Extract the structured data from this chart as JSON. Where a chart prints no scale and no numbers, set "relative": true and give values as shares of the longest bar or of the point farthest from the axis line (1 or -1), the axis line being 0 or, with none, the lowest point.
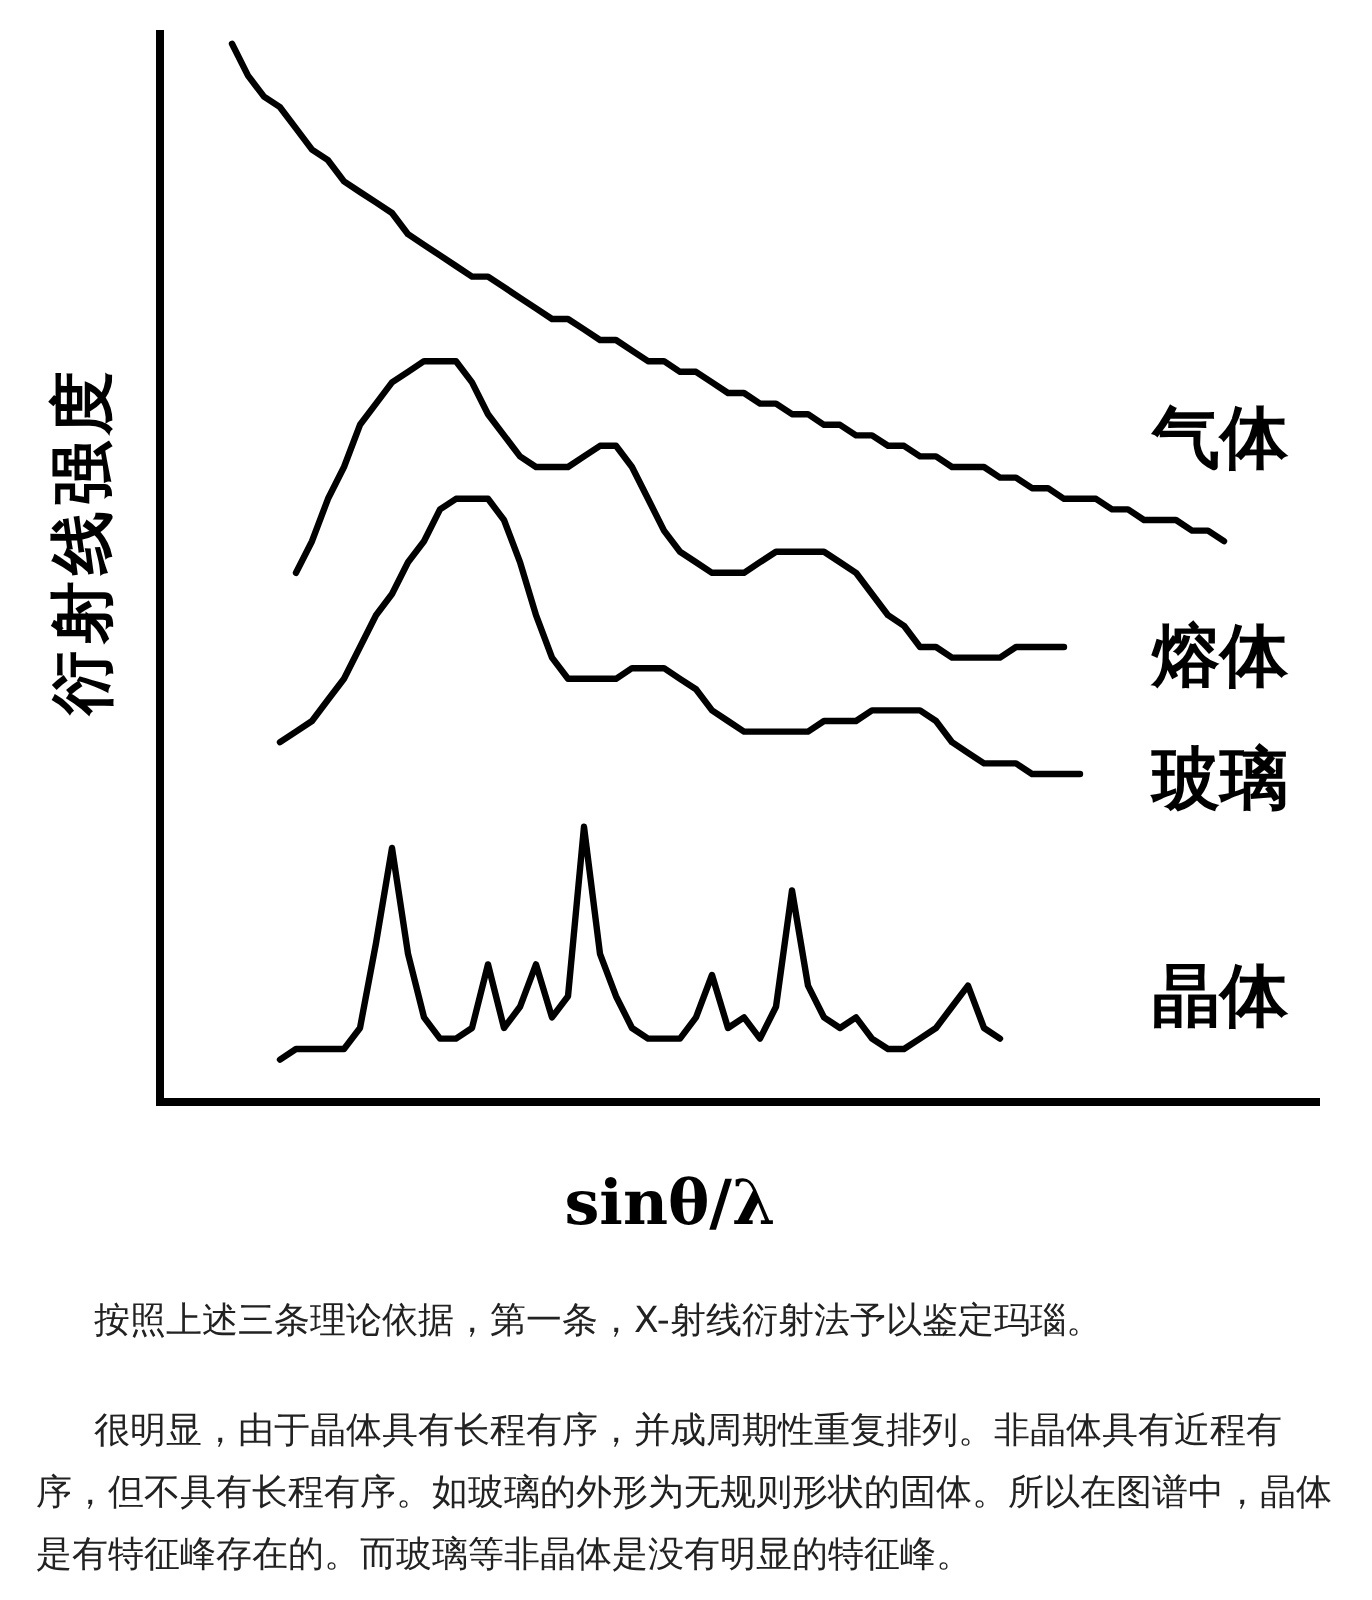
{
  "chart_data": {
    "type": "line",
    "relative": true,
    "xlabel": "sinθ/λ",
    "ylabel": "衍射线强度",
    "marker": "none",
    "line_style": "solid",
    "categories": [
      null,
      null,
      null,
      null,
      null,
      null,
      null,
      null,
      null,
      null,
      null,
      null,
      null,
      null,
      null,
      null,
      null,
      null,
      null,
      null,
      null,
      null,
      null,
      null,
      null,
      null,
      null,
      null,
      null,
      null,
      null,
      null,
      null,
      null,
      null,
      null,
      null,
      null,
      null,
      null,
      null,
      null,
      null,
      null,
      null,
      null,
      null,
      null,
      null,
      null,
      null,
      null,
      null,
      null,
      null,
      null,
      null,
      null,
      null,
      null,
      null,
      null,
      null,
      null,
      null,
      null,
      null
    ],
    "series": [
      {
        "name": "气体",
        "color": "#000000",
        "values": [
          null,
          null,
          null,
          null,
          1.0,
          0.97,
          0.95,
          0.94,
          0.92,
          0.9,
          0.89,
          0.87,
          0.86,
          0.85,
          0.84,
          0.82,
          0.81,
          0.8,
          0.79,
          0.78,
          0.78,
          0.77,
          0.76,
          0.75,
          0.74,
          0.74,
          0.73,
          0.72,
          0.72,
          0.71,
          0.7,
          0.7,
          0.69,
          0.69,
          0.68,
          0.67,
          0.67,
          0.66,
          0.66,
          0.65,
          0.65,
          0.64,
          0.64,
          0.63,
          0.63,
          0.62,
          0.62,
          0.61,
          0.61,
          0.6,
          0.6,
          0.6,
          0.59,
          0.59,
          0.58,
          0.58,
          0.57,
          0.57,
          0.57,
          0.56,
          0.56,
          0.55,
          0.55,
          0.55,
          0.54,
          0.54,
          0.53
        ]
      },
      {
        "name": "熔体",
        "color": "#000000",
        "values": [
          null,
          null,
          null,
          null,
          null,
          null,
          null,
          null,
          0.5,
          0.53,
          0.57,
          0.6,
          0.64,
          0.66,
          0.68,
          0.69,
          0.7,
          0.7,
          0.7,
          0.68,
          0.65,
          0.63,
          0.61,
          0.6,
          0.6,
          0.6,
          0.61,
          0.62,
          0.62,
          0.6,
          0.57,
          0.54,
          0.52,
          0.51,
          0.5,
          0.5,
          0.5,
          0.51,
          0.52,
          0.52,
          0.52,
          0.52,
          0.51,
          0.5,
          0.48,
          0.46,
          0.45,
          0.43,
          0.43,
          0.42,
          0.42,
          0.42,
          0.42,
          0.43,
          0.43,
          0.43,
          0.43,
          null,
          null,
          null,
          null,
          null,
          null,
          null,
          null,
          null,
          null
        ]
      },
      {
        "name": "玻璃",
        "color": "#000000",
        "values": [
          null,
          null,
          null,
          null,
          null,
          null,
          null,
          0.34,
          0.35,
          0.36,
          0.38,
          0.4,
          0.43,
          0.46,
          0.48,
          0.51,
          0.53,
          0.56,
          0.57,
          0.57,
          0.57,
          0.55,
          0.51,
          0.46,
          0.42,
          0.4,
          0.4,
          0.4,
          0.4,
          0.41,
          0.41,
          0.41,
          0.4,
          0.39,
          0.37,
          0.36,
          0.35,
          0.35,
          0.35,
          0.35,
          0.35,
          0.36,
          0.36,
          0.36,
          0.37,
          0.37,
          0.37,
          0.37,
          0.36,
          0.34,
          0.33,
          0.32,
          0.32,
          0.32,
          0.31,
          0.31,
          0.31,
          0.31,
          null,
          null,
          null,
          null,
          null,
          null,
          null,
          null,
          null
        ]
      },
      {
        "name": "晶体",
        "color": "#000000",
        "values": [
          null,
          null,
          null,
          null,
          null,
          null,
          null,
          0.04,
          0.05,
          0.05,
          0.05,
          0.05,
          0.07,
          0.15,
          0.24,
          0.14,
          0.08,
          0.06,
          0.06,
          0.07,
          0.13,
          0.07,
          0.09,
          0.13,
          0.08,
          0.1,
          0.26,
          0.14,
          0.1,
          0.07,
          0.06,
          0.06,
          0.06,
          0.08,
          0.12,
          0.07,
          0.08,
          0.06,
          0.09,
          0.2,
          0.11,
          0.08,
          0.07,
          0.08,
          0.06,
          0.05,
          0.05,
          0.06,
          0.07,
          0.09,
          0.11,
          0.07,
          0.06,
          null,
          null,
          null,
          null,
          null,
          null,
          null,
          null,
          null,
          null,
          null,
          null,
          null,
          null
        ]
      }
    ],
    "annotations": [
      "按照上述三条理论依据，第一条，X-射线衍射法予以鉴定玛瑙。",
      "很明显，由于晶体具有长程有序，并成周期性重复排列。非晶体具有近程有序，但不具有长程有序。如玻璃的外形为无规则形状的固体。所以在图谱中，晶体是有特征峰存在的。而玻璃等非晶体是没有明显的特征峰。"
    ]
  }
}
